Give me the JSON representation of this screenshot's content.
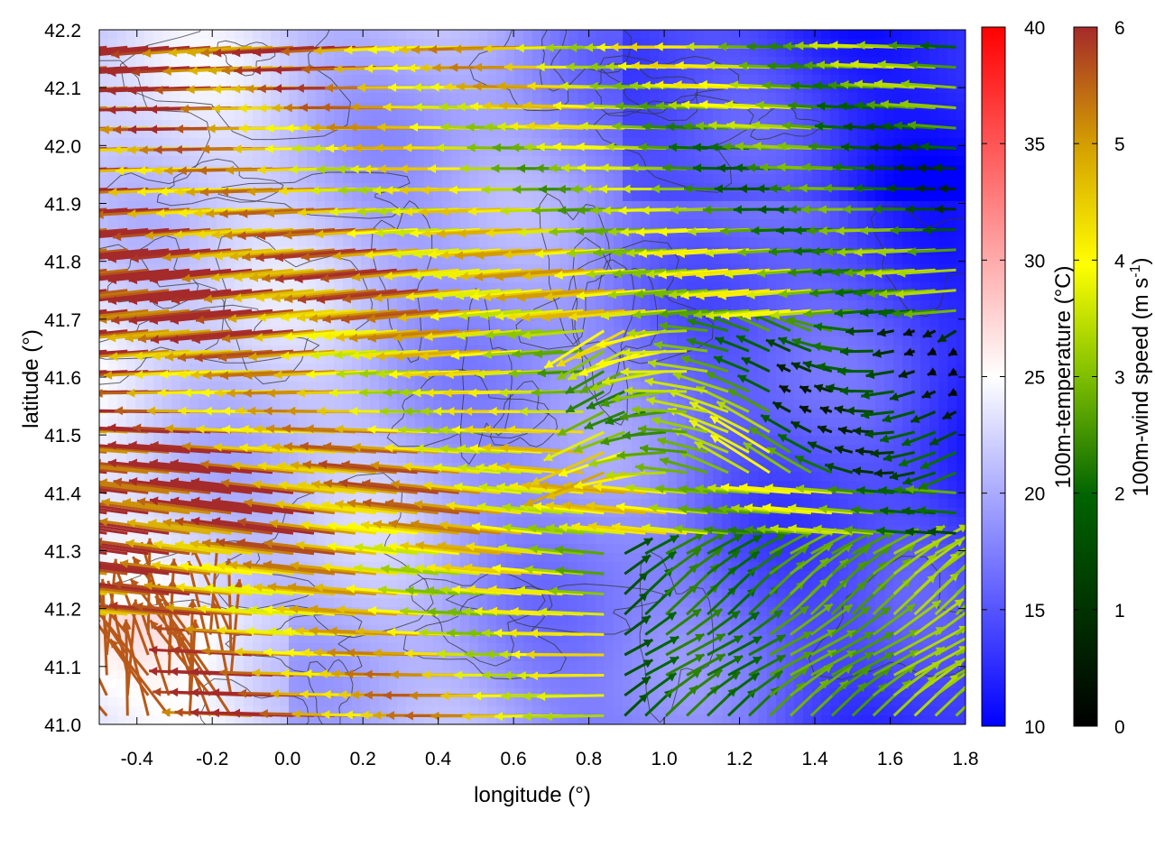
{
  "chart_data": {
    "type": "heatmap",
    "xlabel": "longitude (°)",
    "ylabel": "latitude (°)",
    "xlim": [
      -0.5,
      1.8
    ],
    "ylim": [
      41.0,
      42.2
    ],
    "xticks": [
      "-0.4",
      "-0.2",
      "0.0",
      "0.2",
      "0.4",
      "0.6",
      "0.8",
      "1.0",
      "1.2",
      "1.4",
      "1.6",
      "1.8"
    ],
    "yticks": [
      "41.0",
      "41.1",
      "41.2",
      "41.3",
      "41.4",
      "41.5",
      "41.6",
      "41.7",
      "41.8",
      "41.9",
      "42.0",
      "42.1",
      "42.2"
    ],
    "temperature_colorbar": {
      "label": "100m-temperature (°C)",
      "range": [
        10,
        40
      ],
      "ticks": [
        "10",
        "15",
        "20",
        "25",
        "30",
        "35",
        "40"
      ],
      "colors": [
        "#0000ff",
        "#ffffff",
        "#ff0000"
      ]
    },
    "wind_colorbar": {
      "label": "100m-wind speed (m s",
      "label_sup": "-1",
      "label_end": ")",
      "range": [
        0,
        6
      ],
      "ticks": [
        "0",
        "1",
        "2",
        "3",
        "4",
        "5",
        "6"
      ],
      "colors": [
        "#000000",
        "#006400",
        "#7fbf00",
        "#ffff00",
        "#d4a000",
        "#a52a2a"
      ]
    },
    "field_summary": {
      "temperature_west": 23,
      "temperature_east": 13,
      "wind_west_speed": 6,
      "wind_west_direction": "from east",
      "wind_east_speed": 2.5,
      "wind_southeast_direction": "from southwest"
    }
  }
}
